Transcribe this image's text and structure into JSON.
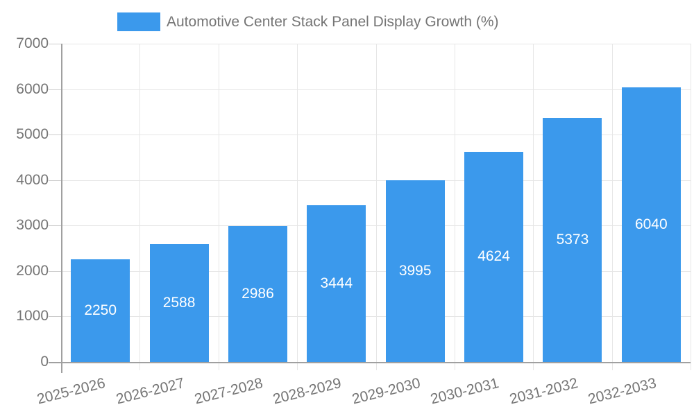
{
  "legend": {
    "series_label": "Automotive Center Stack Panel Display Growth (%)"
  },
  "chart_data": {
    "type": "bar",
    "title": "Automotive Center Stack Panel Display Growth (%)",
    "categories": [
      "2025-2026",
      "2026-2027",
      "2027-2028",
      "2028-2029",
      "2029-2030",
      "2030-2031",
      "2031-2032",
      "2032-2033"
    ],
    "values": [
      2250,
      2588,
      2986,
      3444,
      3995,
      4624,
      5373,
      6040
    ],
    "value_labels_shown": true,
    "xlabel": "",
    "ylabel": "",
    "ylim": [
      0,
      7000
    ],
    "ytick_interval": 1000,
    "yticks": [
      0,
      1000,
      2000,
      3000,
      4000,
      5000,
      6000,
      7000
    ],
    "grid": true,
    "legend_position": "top",
    "colors": {
      "bar": "#3B99EC",
      "bar_value_text": "#ffffff",
      "axis_text": "#757575",
      "gridline": "#e6e6e6",
      "tick_mark": "#cccccc",
      "axis_line": "#a0a0a0",
      "background": "#ffffff"
    }
  }
}
